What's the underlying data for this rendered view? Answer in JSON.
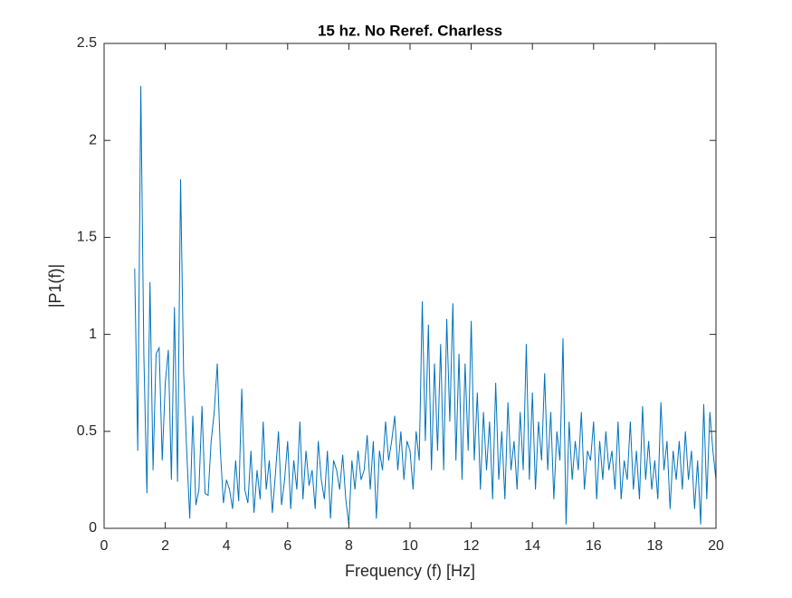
{
  "chart_data": {
    "type": "line",
    "title": "15 hz. No Reref. Charless",
    "x_label": "Frequency (f) [Hz]",
    "y_label": "|P1(f)|",
    "color": "#0072bd",
    "x": [
      1.0,
      1.1,
      1.2,
      1.3,
      1.4,
      1.5,
      1.6,
      1.7,
      1.8,
      1.9,
      2.0,
      2.1,
      2.2,
      2.3,
      2.4,
      2.5,
      2.6,
      2.7,
      2.8,
      2.9,
      3.0,
      3.1,
      3.2,
      3.3,
      3.4,
      3.5,
      3.6,
      3.7,
      3.8,
      3.9,
      4.0,
      4.1,
      4.2,
      4.3,
      4.4,
      4.5,
      4.6,
      4.7,
      4.8,
      4.9,
      5.0,
      5.1,
      5.2,
      5.3,
      5.4,
      5.5,
      5.6,
      5.7,
      5.8,
      5.9,
      6.0,
      6.1,
      6.2,
      6.3,
      6.4,
      6.5,
      6.6,
      6.7,
      6.8,
      6.9,
      7.0,
      7.1,
      7.2,
      7.3,
      7.4,
      7.5,
      7.6,
      7.7,
      7.8,
      7.9,
      8.0,
      8.1,
      8.2,
      8.3,
      8.4,
      8.5,
      8.6,
      8.7,
      8.8,
      8.9,
      9.0,
      9.1,
      9.2,
      9.3,
      9.4,
      9.5,
      9.6,
      9.7,
      9.8,
      9.9,
      10.0,
      10.1,
      10.2,
      10.3,
      10.4,
      10.5,
      10.6,
      10.7,
      10.8,
      10.9,
      11.0,
      11.1,
      11.2,
      11.3,
      11.4,
      11.5,
      11.6,
      11.7,
      11.8,
      11.9,
      12.0,
      12.1,
      12.2,
      12.3,
      12.4,
      12.5,
      12.6,
      12.7,
      12.8,
      12.9,
      13.0,
      13.1,
      13.2,
      13.3,
      13.4,
      13.5,
      13.6,
      13.7,
      13.8,
      13.9,
      14.0,
      14.1,
      14.2,
      14.3,
      14.4,
      14.5,
      14.6,
      14.7,
      14.8,
      14.9,
      15.0,
      15.1,
      15.2,
      15.3,
      15.4,
      15.5,
      15.6,
      15.7,
      15.8,
      15.9,
      16.0,
      16.1,
      16.2,
      16.3,
      16.4,
      16.5,
      16.6,
      16.7,
      16.8,
      16.9,
      17.0,
      17.1,
      17.2,
      17.3,
      17.4,
      17.5,
      17.6,
      17.7,
      17.8,
      17.9,
      18.0,
      18.1,
      18.2,
      18.3,
      18.4,
      18.5,
      18.6,
      18.7,
      18.8,
      18.9,
      19.0,
      19.1,
      19.2,
      19.3,
      19.4,
      19.5,
      19.6,
      19.7,
      19.8,
      19.9,
      20.0
    ],
    "values": [
      1.34,
      0.4,
      2.28,
      0.89,
      0.18,
      1.27,
      0.3,
      0.9,
      0.93,
      0.35,
      0.75,
      0.92,
      0.25,
      1.14,
      0.24,
      1.8,
      0.8,
      0.4,
      0.05,
      0.58,
      0.12,
      0.2,
      0.63,
      0.18,
      0.17,
      0.45,
      0.6,
      0.85,
      0.4,
      0.13,
      0.25,
      0.2,
      0.1,
      0.35,
      0.14,
      0.72,
      0.2,
      0.13,
      0.4,
      0.08,
      0.3,
      0.15,
      0.55,
      0.2,
      0.35,
      0.08,
      0.28,
      0.5,
      0.12,
      0.25,
      0.45,
      0.1,
      0.35,
      0.2,
      0.55,
      0.15,
      0.4,
      0.22,
      0.3,
      0.1,
      0.45,
      0.25,
      0.15,
      0.4,
      0.05,
      0.35,
      0.3,
      0.2,
      0.38,
      0.15,
      0.02,
      0.35,
      0.2,
      0.4,
      0.25,
      0.3,
      0.48,
      0.2,
      0.45,
      0.05,
      0.4,
      0.3,
      0.55,
      0.35,
      0.45,
      0.58,
      0.3,
      0.5,
      0.25,
      0.45,
      0.4,
      0.2,
      0.5,
      0.35,
      1.17,
      0.45,
      1.05,
      0.3,
      0.85,
      0.4,
      0.95,
      0.3,
      1.08,
      0.55,
      1.16,
      0.35,
      0.9,
      0.25,
      0.85,
      0.4,
      1.07,
      0.35,
      0.7,
      0.2,
      0.6,
      0.3,
      0.55,
      0.15,
      0.75,
      0.25,
      0.5,
      0.15,
      0.65,
      0.3,
      0.45,
      0.2,
      0.6,
      0.3,
      0.95,
      0.25,
      0.7,
      0.2,
      0.55,
      0.35,
      0.8,
      0.3,
      0.6,
      0.15,
      0.5,
      0.35,
      0.98,
      0.02,
      0.55,
      0.25,
      0.45,
      0.3,
      0.6,
      0.2,
      0.4,
      0.35,
      0.55,
      0.15,
      0.45,
      0.25,
      0.5,
      0.3,
      0.4,
      0.2,
      0.55,
      0.15,
      0.35,
      0.25,
      0.55,
      0.2,
      0.4,
      0.15,
      0.63,
      0.25,
      0.45,
      0.2,
      0.35,
      0.15,
      0.65,
      0.3,
      0.45,
      0.1,
      0.4,
      0.25,
      0.45,
      0.2,
      0.5,
      0.25,
      0.4,
      0.1,
      0.35,
      0.02,
      0.64,
      0.15,
      0.6,
      0.4,
      0.25
    ],
    "xlim": [
      0,
      20
    ],
    "xticks": [
      0,
      2,
      4,
      6,
      8,
      10,
      12,
      14,
      16,
      18,
      20
    ],
    "ylim": [
      0,
      2.5
    ],
    "yticks": [
      0,
      0.5,
      1,
      1.5,
      2,
      2.5
    ]
  }
}
